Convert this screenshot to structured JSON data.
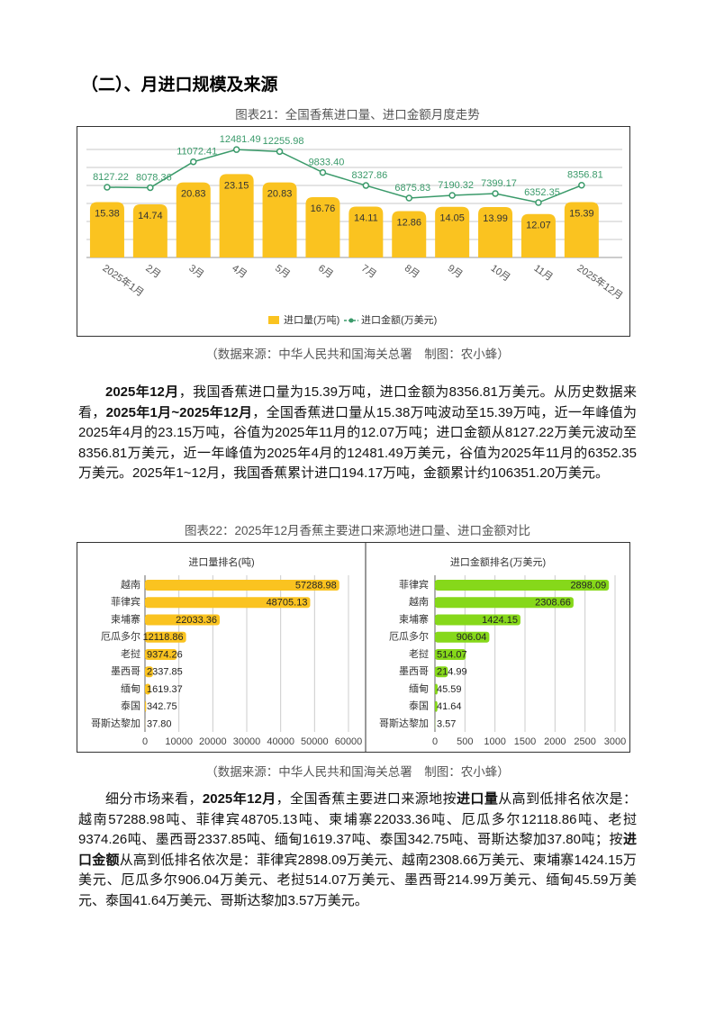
{
  "section_title": "（二）、月进口规模及来源",
  "chart_data": [
    {
      "type": "combo",
      "title": "图表21：全国香蕉进口量、进口金额月度走势",
      "categories": [
        "2025年1月",
        "2月",
        "3月",
        "4月",
        "5月",
        "6月",
        "7月",
        "8月",
        "9月",
        "10月",
        "11月",
        "2025年12月"
      ],
      "series": [
        {
          "name": "进口量(万吨)",
          "type": "bar",
          "color": "#fac320",
          "values": [
            15.38,
            14.74,
            20.83,
            23.15,
            20.83,
            16.76,
            14.11,
            12.86,
            14.05,
            13.99,
            12.07,
            15.39
          ]
        },
        {
          "name": "进口金额(万美元)",
          "type": "line",
          "axis": "y2",
          "color": "#3a9a6a",
          "values": [
            8127.22,
            8078.36,
            11072.41,
            12481.49,
            12255.98,
            9833.4,
            8327.86,
            6875.83,
            7190.32,
            7399.17,
            6352.35,
            8356.81
          ],
          "value_labels": [
            "8127.22",
            "8078.36",
            "11072.41",
            "12481.49",
            "12255.98",
            "9833.40",
            "8327.86",
            "6875.83",
            "7190.32",
            "7399.17",
            "6352.35",
            "8356.81"
          ]
        }
      ],
      "ylim": [
        0,
        30
      ],
      "yticks": [
        0,
        5,
        10,
        15,
        20,
        25,
        30
      ],
      "y2lim": [
        0,
        12500
      ],
      "grid": true,
      "tick_labels": false,
      "legend": "bottom"
    },
    {
      "type": "barh",
      "title": "进口量排名(吨)",
      "color": "#fac320",
      "categories": [
        "越南",
        "菲律宾",
        "柬埔寨",
        "厄瓜多尔",
        "老挝",
        "墨西哥",
        "缅甸",
        "泰国",
        "哥斯达黎加"
      ],
      "values": [
        57288.98,
        48705.13,
        22033.36,
        12118.86,
        9374.26,
        2337.85,
        1619.37,
        342.75,
        37.8
      ],
      "value_labels": [
        "57288.98",
        "48705.13",
        "22033.36",
        "12118.86",
        "9374.26",
        "2337.85",
        "1619.37",
        "342.75",
        "37.80"
      ],
      "xlim": [
        0,
        60000
      ],
      "xticks": [
        0,
        10000,
        20000,
        30000,
        40000,
        50000,
        60000
      ],
      "grid": true
    },
    {
      "type": "barh",
      "title": "进口金额排名(万美元)",
      "color": "#86d81a",
      "categories": [
        "菲律宾",
        "越南",
        "柬埔寨",
        "厄瓜多尔",
        "老挝",
        "墨西哥",
        "缅甸",
        "泰国",
        "哥斯达黎加"
      ],
      "values": [
        2898.09,
        2308.66,
        1424.15,
        906.04,
        514.07,
        214.99,
        45.59,
        41.64,
        3.57
      ],
      "xlim": [
        0,
        3000
      ],
      "xticks": [
        0,
        500,
        1000,
        1500,
        2000,
        2500,
        3000
      ],
      "grid": true
    }
  ],
  "source_1": "（数据来源：中华人民共和国海关总署　制图：农小蜂）",
  "paragraph_1": [
    {
      "text": "2025年12月",
      "bold": true
    },
    {
      "text": "，我国香蕉进口量为15.39万吨，进口金额为8356.81万美元。从历史数据来看，",
      "bold": false
    },
    {
      "text": "2025年1月~2025年12月",
      "bold": true
    },
    {
      "text": "，全国香蕉进口量从15.38万吨波动至15.39万吨，近一年峰值为2025年4月的23.15万吨，谷值为2025年11月的12.07万吨；进口金额从8127.22万美元波动至8356.81万美元，近一年峰值为2025年4月的12481.49万美元，谷值为2025年11月的6352.35万美元。2025年1~12月，我国香蕉累计进口194.17万吨，金额累计约106351.20万美元。",
      "bold": false
    }
  ],
  "figure_caption_2": "图表22：2025年12月香蕉主要进口来源地进口量、进口金额对比",
  "source_2": "（数据来源：中华人民共和国海关总署　制图：农小蜂）",
  "paragraph_2": [
    {
      "text": "细分市场来看，",
      "bold": false
    },
    {
      "text": "2025年12月",
      "bold": true
    },
    {
      "text": "，全国香蕉主要进口来源地按",
      "bold": false
    },
    {
      "text": "进口量",
      "bold": true
    },
    {
      "text": "从高到低排名依次是：越南57288.98吨、菲律宾48705.13吨、柬埔寨22033.36吨、厄瓜多尔12118.86吨、老挝9374.26吨、墨西哥2337.85吨、缅甸1619.37吨、泰国342.75吨、哥斯达黎加37.80吨；按",
      "bold": false
    },
    {
      "text": "进口金额",
      "bold": true
    },
    {
      "text": "从高到低排名依次是：菲律宾2898.09万美元、越南2308.66万美元、柬埔寨1424.15万美元、厄瓜多尔906.04万美元、老挝514.07万美元、墨西哥214.99万美元、缅甸45.59万美元、泰国41.64万美元、哥斯达黎加3.57万美元。",
      "bold": false
    }
  ]
}
